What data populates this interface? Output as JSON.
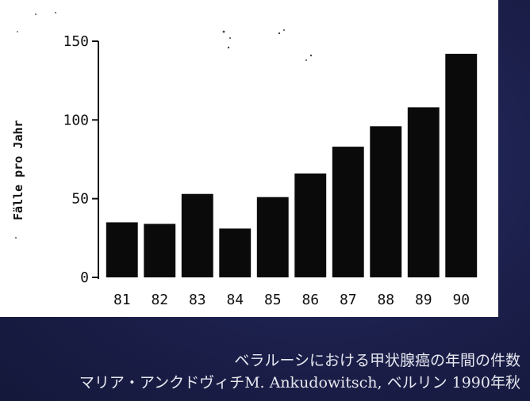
{
  "chart_data": {
    "type": "bar",
    "categories": [
      "81",
      "82",
      "83",
      "84",
      "85",
      "86",
      "87",
      "88",
      "89",
      "90"
    ],
    "values": [
      35,
      34,
      53,
      31,
      51,
      66,
      83,
      96,
      108,
      142
    ],
    "ylabel": "Fälle pro Jahr",
    "xlabel": "",
    "ylim": [
      0,
      150
    ],
    "yticks": [
      0,
      50,
      100,
      150
    ],
    "grid": false,
    "bar_color": "#0a0a0a"
  },
  "caption": {
    "line1": "ベラルーシにおける甲状腺癌の年間の件数",
    "line2": "マリア・アンクドヴィチM. Ankudowitsch, ベルリン 1990年秋"
  },
  "colors": {
    "background": "#1b1f4a",
    "scan": "#ffffff",
    "caption_text": "#e8e8f0"
  }
}
